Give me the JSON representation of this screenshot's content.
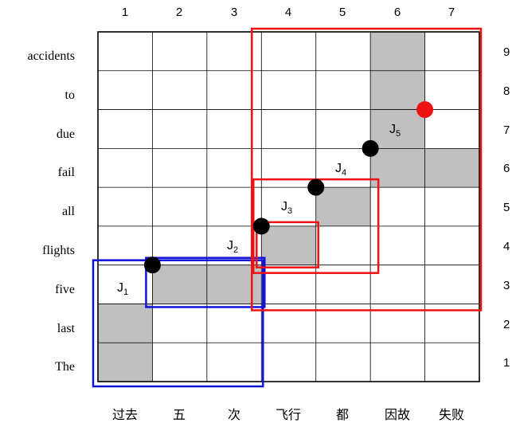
{
  "column_numbers": [
    "1",
    "2",
    "3",
    "4",
    "5",
    "6",
    "7"
  ],
  "row_numbers": [
    "9",
    "8",
    "7",
    "6",
    "5",
    "4",
    "3",
    "2",
    "1"
  ],
  "english_words": [
    "accidents",
    "to",
    "due",
    "fail",
    "all",
    "flights",
    "five",
    "last",
    "The"
  ],
  "chinese_words": [
    "过去",
    "五",
    "次",
    "飞行",
    "都",
    "因故",
    "失败"
  ],
  "shaded_cells": [
    [
      1,
      1
    ],
    [
      1,
      2
    ],
    [
      2,
      3
    ],
    [
      3,
      3
    ],
    [
      4,
      4
    ],
    [
      5,
      5
    ],
    [
      6,
      6
    ],
    [
      7,
      6
    ],
    [
      6,
      7
    ],
    [
      6,
      8
    ],
    [
      6,
      9
    ]
  ],
  "junctions": [
    {
      "label": "J",
      "sub": "1",
      "col": 1,
      "row": 3,
      "color": "#000000"
    },
    {
      "label": "J",
      "sub": "2",
      "col": 3,
      "row": 4,
      "color": "#000000"
    },
    {
      "label": "J",
      "sub": "3",
      "col": 4,
      "row": 5,
      "color": "#000000"
    },
    {
      "label": "J",
      "sub": "4",
      "col": 5,
      "row": 6,
      "color": "#000000"
    },
    {
      "label": "J",
      "sub": "5",
      "col": 6,
      "row": 7,
      "color": "#ee1111"
    }
  ],
  "boxes": [
    {
      "name": "blue-outer-box",
      "color": "#1111dd",
      "cols": [
        1,
        3
      ],
      "rows": [
        1,
        3
      ]
    },
    {
      "name": "blue-inner-box",
      "color": "#1111dd",
      "cols": [
        2,
        3
      ],
      "rows": [
        3,
        3
      ]
    },
    {
      "name": "red-small-box",
      "color": "#ee1111",
      "cols": [
        4,
        4
      ],
      "rows": [
        4,
        4
      ]
    },
    {
      "name": "red-medium-box",
      "color": "#ee1111",
      "cols": [
        4,
        5
      ],
      "rows": [
        4,
        5
      ]
    },
    {
      "name": "red-large-box",
      "color": "#ee1111",
      "cols": [
        4,
        7
      ],
      "rows": [
        3,
        9
      ]
    }
  ],
  "colors": {
    "shade": "#c0c0c0",
    "grid": "#000000"
  }
}
